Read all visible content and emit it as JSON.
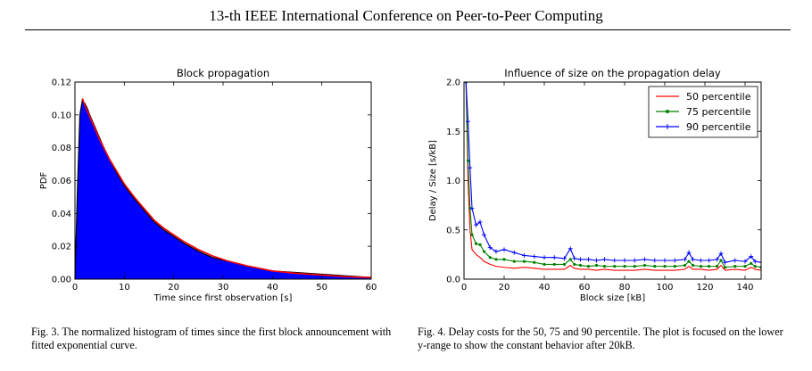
{
  "header": {
    "title": "13-th IEEE International Conference on Peer-to-Peer Computing"
  },
  "captions": {
    "fig3": "Fig. 3.   The normalized histogram of times since the first block announcement with fitted exponential curve.",
    "fig4": "Fig. 4.   Delay costs for the 50, 75 and 90 percentile. The plot is focused on the lower y-range to show the constant behavior after 20kB."
  },
  "chart_data": [
    {
      "type": "area",
      "title": "Block propagation",
      "xlabel": "Time since first observation [s]",
      "ylabel": "PDF",
      "xlim": [
        0,
        60
      ],
      "ylim": [
        0,
        0.12
      ],
      "xticks": [
        0,
        10,
        20,
        30,
        40,
        50,
        60
      ],
      "yticks": [
        0.0,
        0.02,
        0.04,
        0.06,
        0.08,
        0.1,
        0.12
      ],
      "grid": false,
      "colors": {
        "histogram": "#0000ff",
        "fit": "#ff0000",
        "outline": "#000000"
      },
      "series": [
        {
          "kind": "histogram",
          "x": [
            0,
            0.5,
            1,
            1.5,
            2,
            2.5,
            3,
            4,
            5,
            6,
            7,
            8,
            9,
            10,
            12,
            14,
            16,
            18,
            20,
            22,
            25,
            28,
            31,
            35,
            40,
            45,
            50,
            55,
            60
          ],
          "values": [
            0,
            0.055,
            0.1,
            0.109,
            0.107,
            0.104,
            0.1,
            0.093,
            0.086,
            0.079,
            0.073,
            0.067,
            0.062,
            0.057,
            0.049,
            0.042,
            0.035,
            0.03,
            0.026,
            0.022,
            0.017,
            0.013,
            0.011,
            0.008,
            0.005,
            0.004,
            0.003,
            0.002,
            0.001
          ]
        },
        {
          "kind": "fit",
          "x": [
            1.5,
            2,
            3,
            4,
            5,
            6,
            7,
            8,
            9,
            10,
            12,
            14,
            16,
            18,
            20,
            22,
            25,
            28,
            31,
            35,
            40,
            45,
            50,
            55,
            60
          ],
          "values": [
            0.11,
            0.106,
            0.099,
            0.092,
            0.085,
            0.079,
            0.073,
            0.068,
            0.063,
            0.058,
            0.05,
            0.043,
            0.036,
            0.031,
            0.027,
            0.023,
            0.018,
            0.014,
            0.011,
            0.008,
            0.005,
            0.0035,
            0.0025,
            0.0015,
            0.001
          ]
        }
      ]
    },
    {
      "type": "line",
      "title": "Influence of size on the propagation delay",
      "xlabel": "Block size [kB]",
      "ylabel": "Delay / Size [s/kB]",
      "xlim": [
        0,
        148
      ],
      "ylim": [
        0,
        2.0
      ],
      "xticks": [
        0,
        20,
        40,
        60,
        80,
        100,
        120,
        140
      ],
      "yticks": [
        0.0,
        0.5,
        1.0,
        1.5,
        2.0
      ],
      "grid": false,
      "legend_position": "top-right",
      "x": [
        1,
        2,
        3,
        4,
        6,
        8,
        10,
        13,
        16,
        20,
        25,
        30,
        35,
        40,
        45,
        50,
        53,
        55,
        58,
        62,
        66,
        70,
        75,
        80,
        85,
        90,
        95,
        100,
        105,
        110,
        112,
        114,
        118,
        122,
        126,
        128,
        130,
        135,
        140,
        143,
        145,
        148
      ],
      "series": [
        {
          "name": "50 percentile",
          "color": "#ff0000",
          "values": [
            2.0,
            1.0,
            0.5,
            0.3,
            0.25,
            0.22,
            0.18,
            0.15,
            0.13,
            0.12,
            0.11,
            0.12,
            0.11,
            0.1,
            0.1,
            0.1,
            0.14,
            0.11,
            0.1,
            0.1,
            0.09,
            0.1,
            0.09,
            0.09,
            0.09,
            0.1,
            0.09,
            0.09,
            0.09,
            0.1,
            0.13,
            0.1,
            0.1,
            0.09,
            0.1,
            0.14,
            0.09,
            0.1,
            0.09,
            0.12,
            0.1,
            0.09
          ]
        },
        {
          "name": "75 percentile",
          "color": "#008000",
          "values": [
            2.0,
            1.2,
            0.72,
            0.45,
            0.36,
            0.35,
            0.28,
            0.22,
            0.2,
            0.2,
            0.18,
            0.18,
            0.17,
            0.15,
            0.15,
            0.15,
            0.2,
            0.15,
            0.14,
            0.13,
            0.14,
            0.13,
            0.13,
            0.13,
            0.13,
            0.14,
            0.13,
            0.13,
            0.13,
            0.14,
            0.18,
            0.14,
            0.13,
            0.13,
            0.13,
            0.19,
            0.12,
            0.13,
            0.13,
            0.16,
            0.13,
            0.12
          ]
        },
        {
          "name": "90 percentile",
          "color": "#0000ff",
          "values": [
            2.0,
            1.6,
            1.13,
            0.72,
            0.55,
            0.58,
            0.45,
            0.32,
            0.28,
            0.3,
            0.27,
            0.24,
            0.23,
            0.22,
            0.22,
            0.21,
            0.31,
            0.21,
            0.2,
            0.2,
            0.19,
            0.2,
            0.19,
            0.19,
            0.19,
            0.2,
            0.19,
            0.19,
            0.19,
            0.2,
            0.27,
            0.2,
            0.19,
            0.19,
            0.2,
            0.26,
            0.17,
            0.19,
            0.18,
            0.23,
            0.18,
            0.17
          ]
        }
      ]
    }
  ]
}
